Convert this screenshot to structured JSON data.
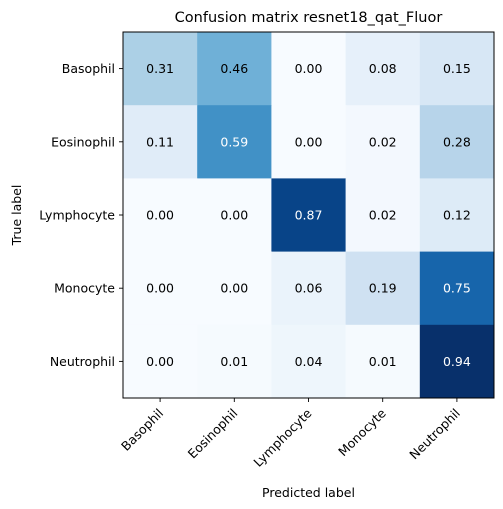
{
  "chart_data": {
    "type": "heatmap",
    "title": "Confusion matrix resnet18_qat_Fluor",
    "xlabel": "Predicted label",
    "ylabel": "True label",
    "x_categories": [
      "Basophil",
      "Eosinophil",
      "Lymphocyte",
      "Monocyte",
      "Neutrophil"
    ],
    "y_categories": [
      "Basophil",
      "Eosinophil",
      "Lymphocyte",
      "Monocyte",
      "Neutrophil"
    ],
    "values": [
      [
        0.31,
        0.46,
        0.0,
        0.08,
        0.15
      ],
      [
        0.11,
        0.59,
        0.0,
        0.02,
        0.28
      ],
      [
        0.0,
        0.0,
        0.87,
        0.02,
        0.12
      ],
      [
        0.0,
        0.0,
        0.06,
        0.19,
        0.75
      ],
      [
        0.0,
        0.01,
        0.04,
        0.01,
        0.94
      ]
    ],
    "value_format": "0.00",
    "colormap": "Blues",
    "color_range": [
      0,
      0.94
    ],
    "label_threshold": 0.47,
    "colors": {
      "text_dark": "#000000",
      "text_light": "#ffffff",
      "axis": "#000000",
      "background": "#ffffff"
    }
  }
}
